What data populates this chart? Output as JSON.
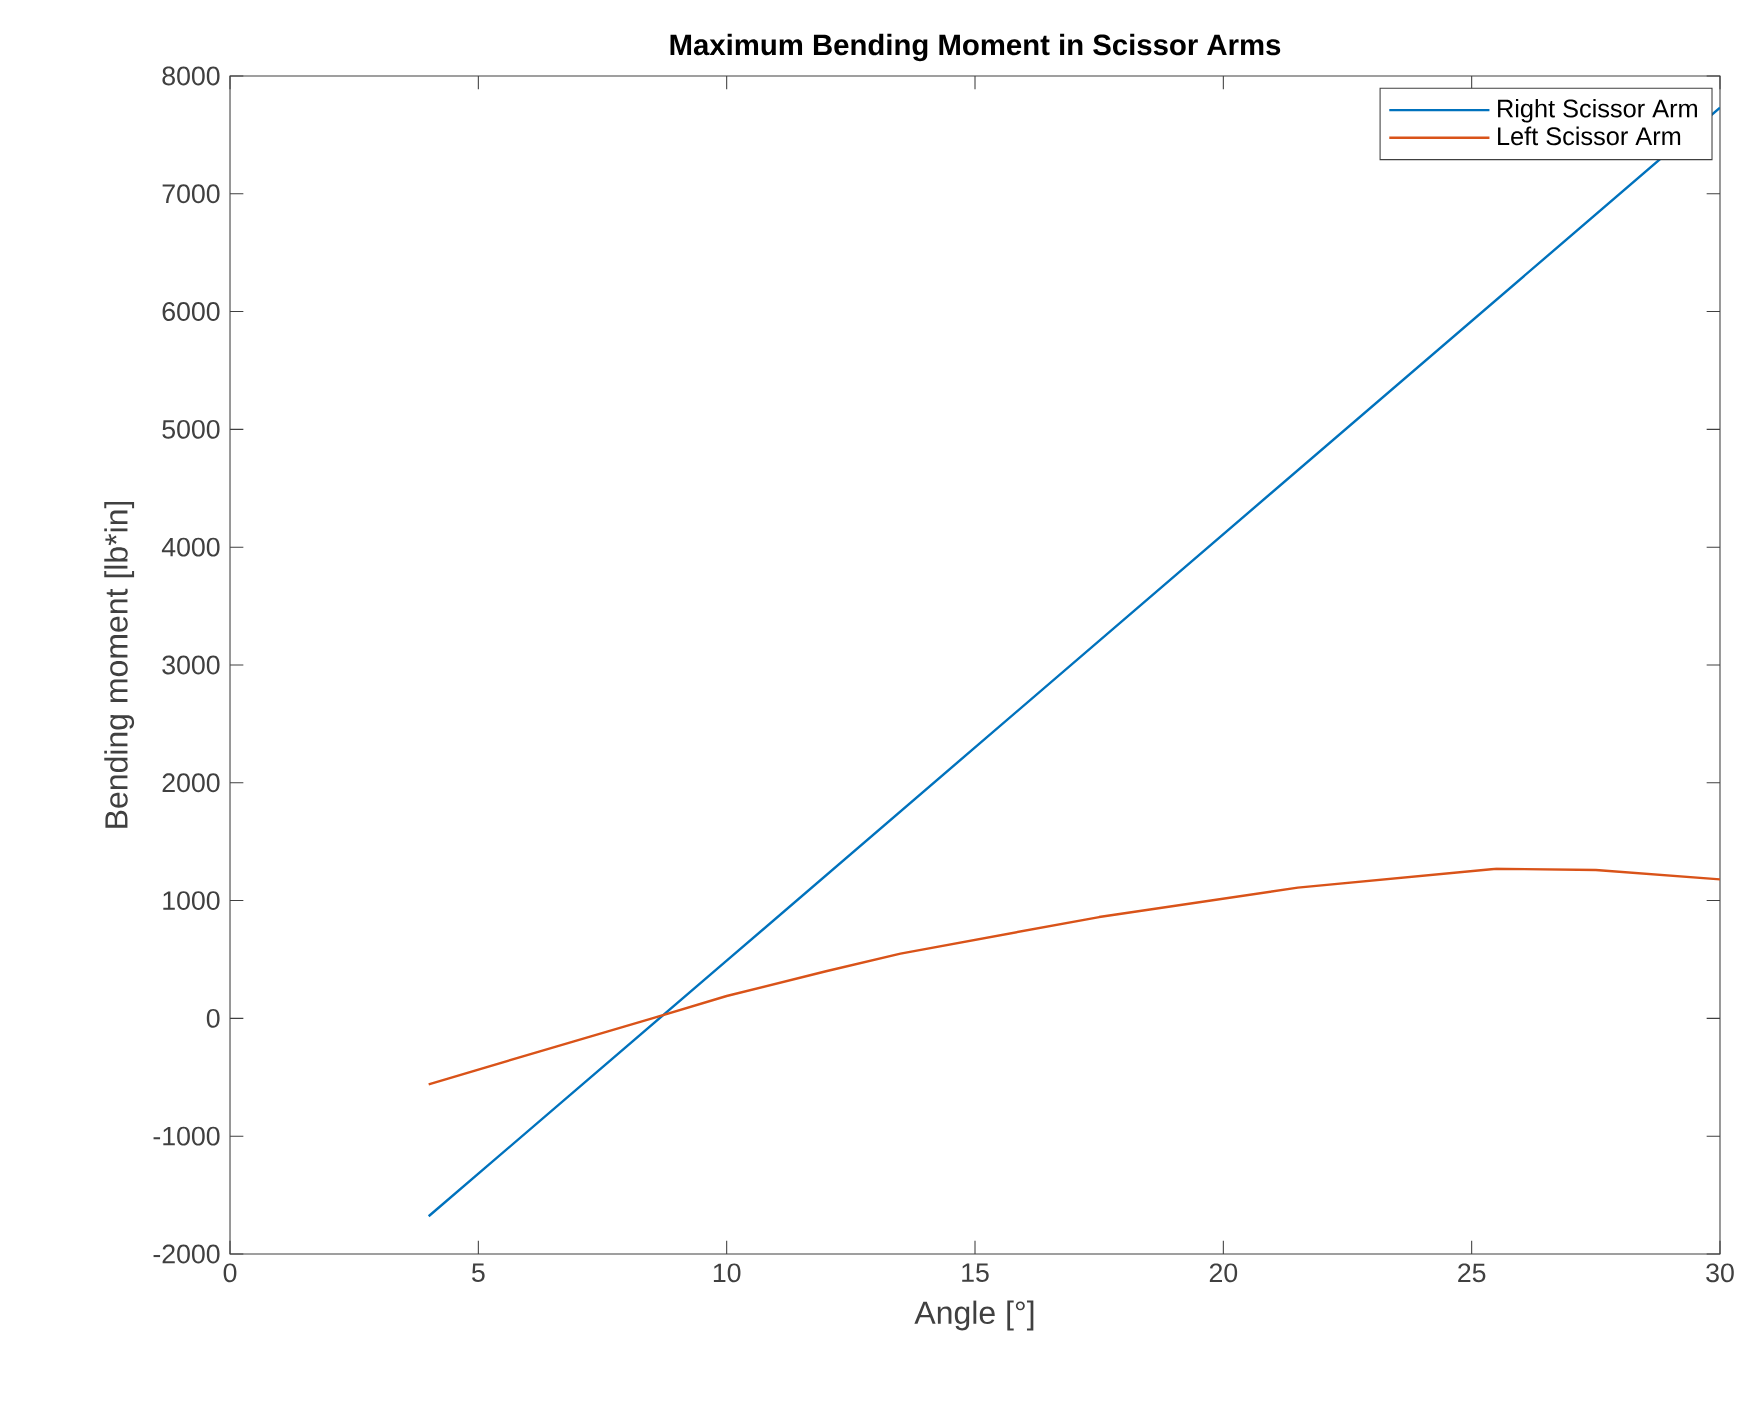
{
  "chart_data": {
    "type": "line",
    "title": "Maximum Bending Moment in Scissor Arms",
    "xlabel": "Angle [°]",
    "ylabel": "Bending moment [lb*in]",
    "xlim": [
      0,
      30
    ],
    "ylim": [
      -2000,
      8000
    ],
    "xticks": [
      0,
      5,
      10,
      15,
      20,
      25,
      30
    ],
    "yticks": [
      -2000,
      -1000,
      0,
      1000,
      2000,
      3000,
      4000,
      5000,
      6000,
      7000,
      8000
    ],
    "grid": false,
    "legend": "top right",
    "marker": "none",
    "line_style": "solid",
    "series": [
      {
        "name": "Right Scissor Arm",
        "color": "#0072bd",
        "x": [
          4,
          10,
          15,
          20,
          25,
          30
        ],
        "values": [
          -1680,
          490,
          2300,
          4110,
          5920,
          7730
        ]
      },
      {
        "name": "Left Scissor Arm",
        "color": "#d95319",
        "x": [
          4,
          6,
          8.5,
          10,
          12,
          13.5,
          17.5,
          21.5,
          25.5,
          27.5,
          30
        ],
        "values": [
          -560,
          -310,
          0,
          190,
          400,
          550,
          860,
          1110,
          1270,
          1260,
          1180
        ]
      }
    ]
  }
}
